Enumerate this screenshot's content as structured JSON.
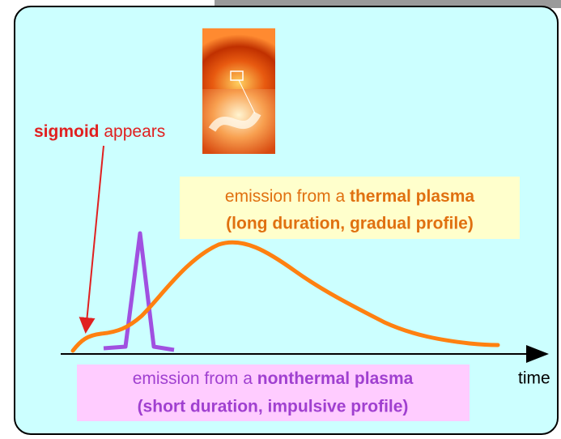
{
  "sigmoid_label": {
    "bold": "sigmoid",
    "rest": "appears"
  },
  "thermal": {
    "prefix": "emission from a",
    "bold": "thermal plasma",
    "line2": "(long duration, gradual profile)"
  },
  "nonthermal": {
    "prefix": "emission from a",
    "bold": "nonthermal plasma",
    "line2": "(short duration, impulsive profile)"
  },
  "axis_label": "time"
}
